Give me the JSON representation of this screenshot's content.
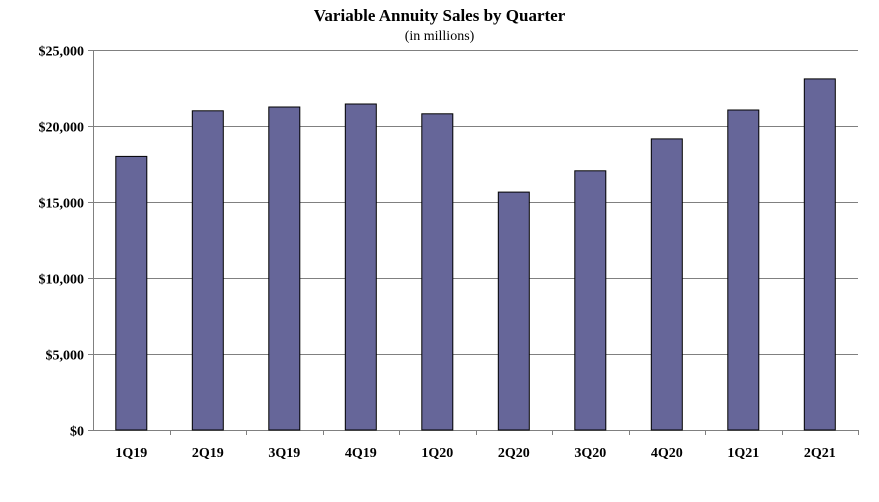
{
  "chart_data": {
    "type": "bar",
    "title": "Variable Annuity Sales by Quarter",
    "subtitle": "(in millions)",
    "xlabel": "",
    "ylabel": "",
    "categories": [
      "1Q19",
      "2Q19",
      "3Q19",
      "4Q19",
      "1Q20",
      "2Q20",
      "3Q20",
      "4Q20",
      "1Q21",
      "2Q21"
    ],
    "values": [
      18000,
      21000,
      21250,
      21450,
      20800,
      15650,
      17050,
      19150,
      21050,
      23100
    ],
    "ylim": [
      0,
      25000
    ],
    "yticks": [
      0,
      5000,
      10000,
      15000,
      20000,
      25000
    ],
    "ytick_labels": [
      "$0",
      "$5,000",
      "$10,000",
      "$15,000",
      "$20,000",
      "$25,000"
    ],
    "grid": true,
    "legend": "none",
    "colors": {
      "bar_fill": "#666699",
      "bar_stroke": "#000000",
      "grid": "#808080",
      "axis": "#808080"
    }
  }
}
